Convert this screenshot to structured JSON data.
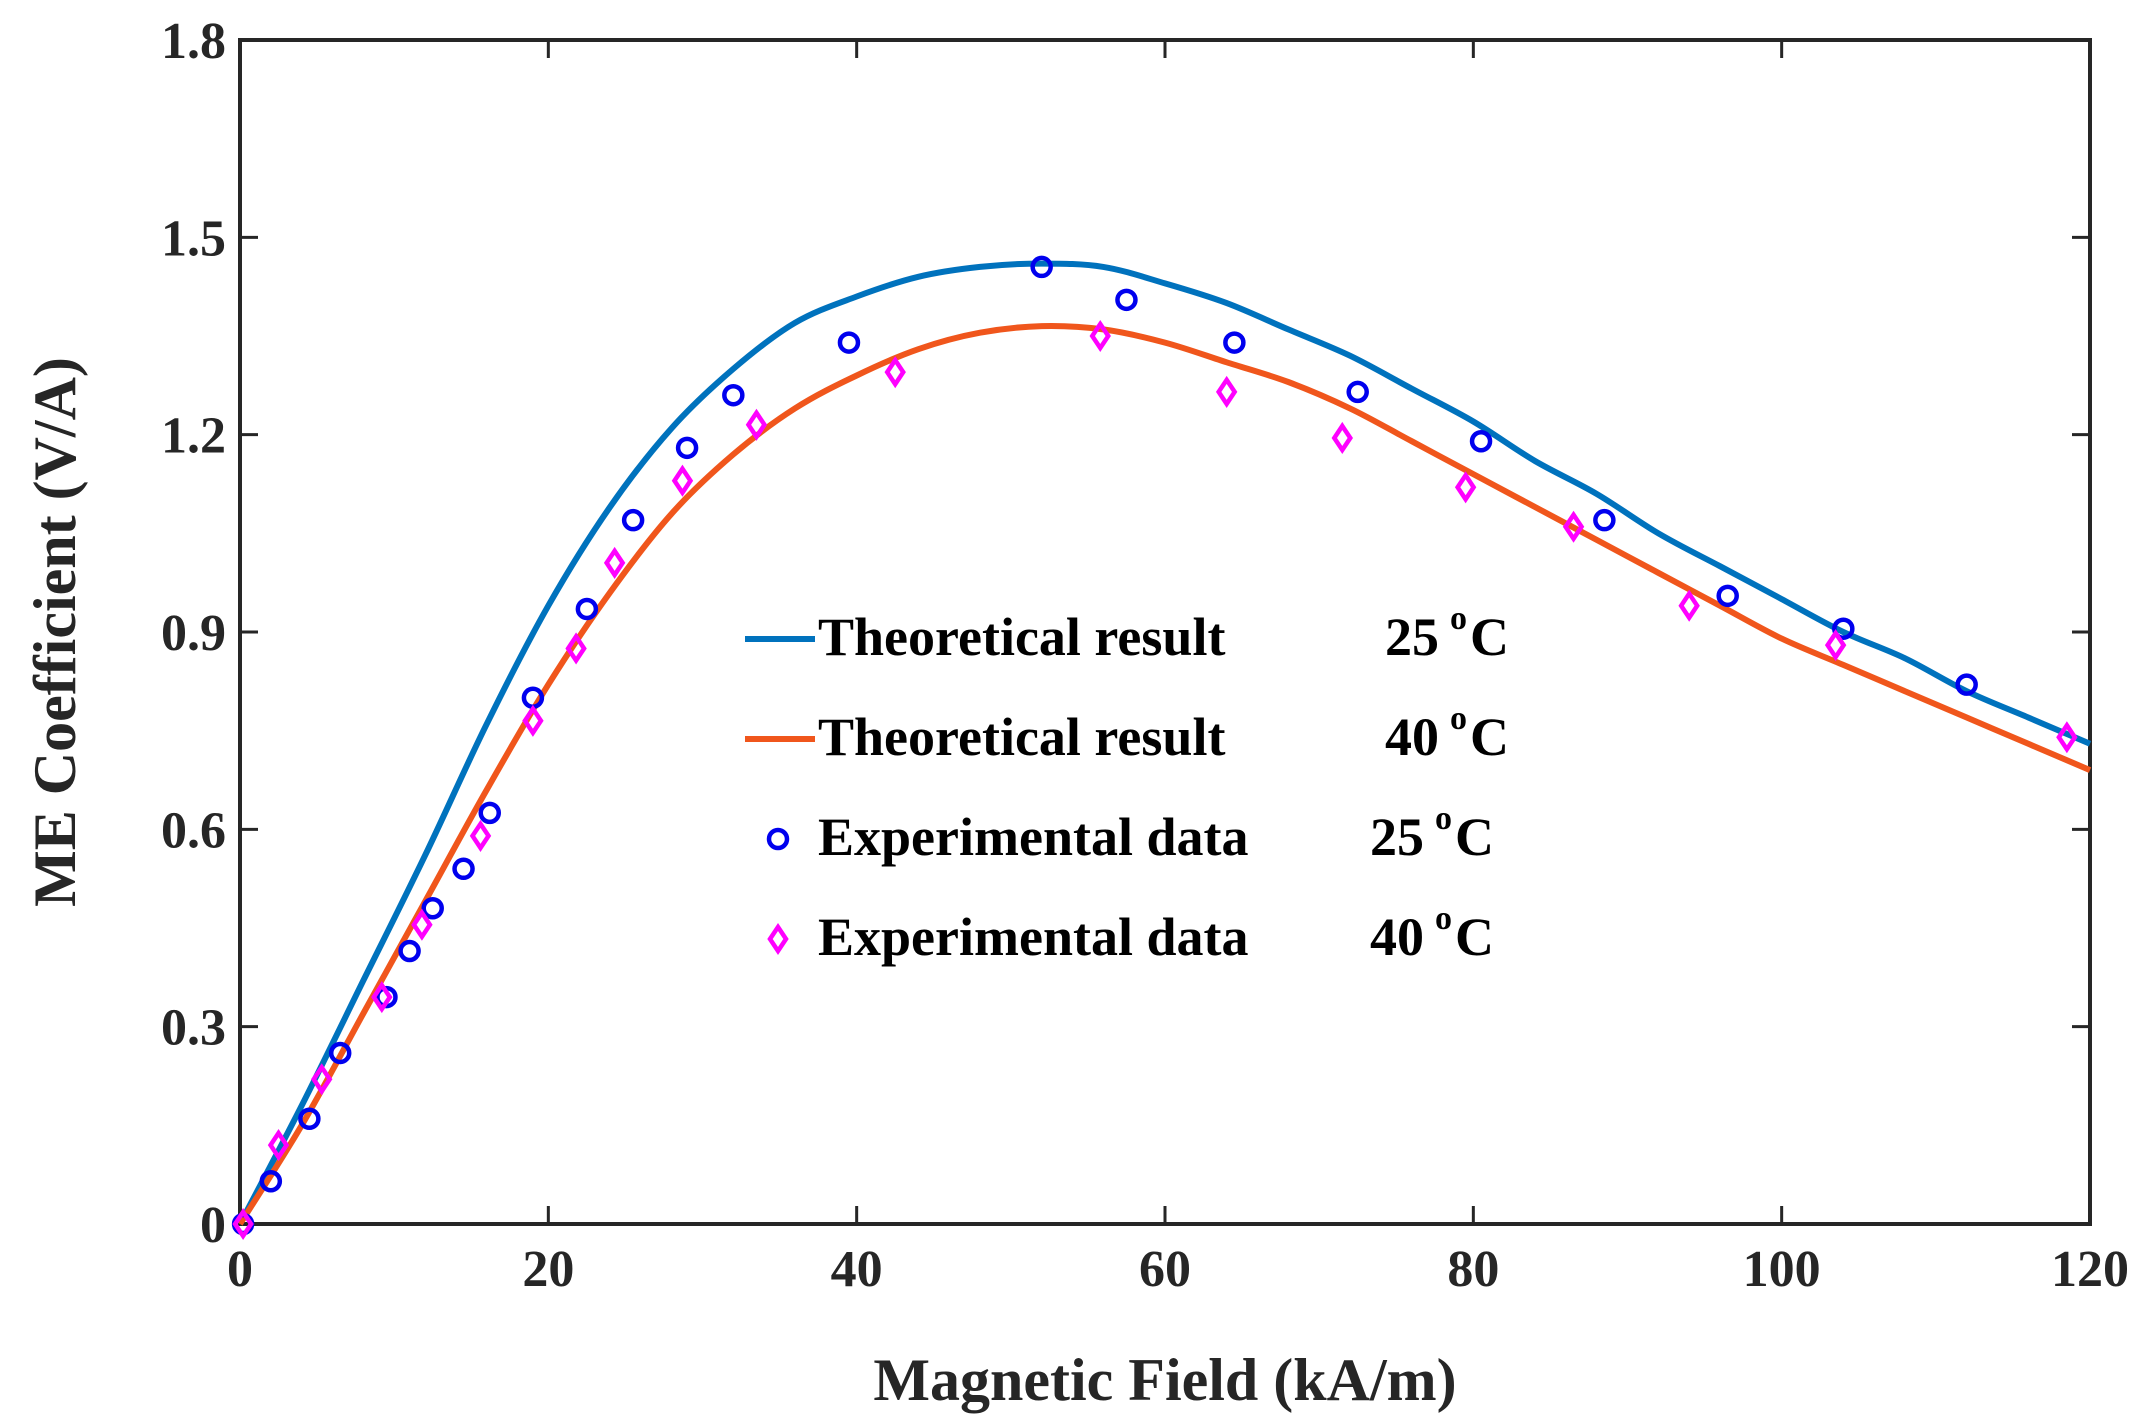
{
  "chart_data": {
    "type": "line",
    "xlabel": "Magnetic Field (kA/m)",
    "ylabel": "ME Coefficient (V/A)",
    "xlim": [
      0,
      120
    ],
    "ylim": [
      0,
      1.8
    ],
    "xticks": [
      0,
      20,
      40,
      60,
      80,
      100,
      120
    ],
    "yticks": [
      0,
      0.3,
      0.6,
      0.9,
      1.2,
      1.5,
      1.8
    ],
    "xtick_labels": [
      "0",
      "20",
      "40",
      "60",
      "80",
      "100",
      "120"
    ],
    "ytick_labels": [
      "0",
      "0.3",
      "0.6",
      "0.9",
      "1.2",
      "1.5",
      "1.8"
    ],
    "grid": false,
    "legend_position": "center",
    "series": [
      {
        "name": "Theoretical result 25 °C",
        "legend_label": "Theoretical result",
        "legend_temp": "25",
        "legend_unit": "C",
        "legend_sup": "o",
        "kind": "line",
        "color": "#0072BD",
        "x": [
          0,
          4,
          8,
          12,
          16,
          20,
          24,
          28,
          32,
          36,
          40,
          44,
          48,
          52,
          56,
          60,
          64,
          68,
          72,
          76,
          80,
          84,
          88,
          92,
          96,
          100,
          104,
          108,
          112,
          116,
          120
        ],
        "y": [
          0,
          0.18,
          0.37,
          0.56,
          0.76,
          0.94,
          1.09,
          1.21,
          1.3,
          1.37,
          1.41,
          1.44,
          1.455,
          1.46,
          1.455,
          1.43,
          1.4,
          1.36,
          1.32,
          1.27,
          1.22,
          1.16,
          1.11,
          1.05,
          1.0,
          0.95,
          0.9,
          0.86,
          0.81,
          0.77,
          0.73
        ]
      },
      {
        "name": "Theoretical result 40 °C",
        "legend_label": "Theoretical result",
        "legend_temp": "40",
        "legend_unit": "C",
        "legend_sup": "o",
        "kind": "line",
        "color": "#F0561C",
        "x": [
          0,
          4,
          8,
          12,
          16,
          20,
          24,
          28,
          32,
          36,
          40,
          44,
          48,
          52,
          56,
          60,
          64,
          68,
          72,
          76,
          80,
          84,
          88,
          92,
          96,
          100,
          104,
          108,
          112,
          116,
          120
        ],
        "y": [
          0,
          0.15,
          0.32,
          0.49,
          0.66,
          0.82,
          0.96,
          1.08,
          1.17,
          1.24,
          1.29,
          1.33,
          1.355,
          1.365,
          1.36,
          1.34,
          1.31,
          1.28,
          1.24,
          1.19,
          1.14,
          1.09,
          1.04,
          0.99,
          0.94,
          0.89,
          0.85,
          0.81,
          0.77,
          0.73,
          0.69
        ]
      },
      {
        "name": "Experimental data 25 °C",
        "legend_label": "Experimental data",
        "legend_temp": "25",
        "legend_unit": "C",
        "legend_sup": "o",
        "kind": "scatter",
        "marker": "circle",
        "color": "#0000EE",
        "x": [
          0.2,
          2,
          4.5,
          6.5,
          9.5,
          11,
          12.5,
          14.5,
          16.2,
          19,
          22.5,
          25.5,
          29,
          32,
          39.5,
          52,
          57.5,
          64.5,
          72.5,
          80.5,
          88.5,
          96.5,
          104,
          112
        ],
        "y": [
          0,
          0.065,
          0.16,
          0.26,
          0.345,
          0.415,
          0.48,
          0.54,
          0.625,
          0.8,
          0.935,
          1.07,
          1.18,
          1.26,
          1.34,
          1.455,
          1.405,
          1.34,
          1.265,
          1.19,
          1.07,
          0.955,
          0.905,
          0.82
        ]
      },
      {
        "name": "Experimental data 40 °C",
        "legend_label": "Experimental data",
        "legend_temp": "40",
        "legend_unit": "C",
        "legend_sup": "o",
        "kind": "scatter",
        "marker": "diamond",
        "color": "#FF00FF",
        "x": [
          0.2,
          2.5,
          5.3,
          9.2,
          11.8,
          15.6,
          19,
          21.8,
          24.3,
          28.7,
          33.5,
          42.5,
          55.8,
          64,
          71.5,
          79.5,
          86.5,
          94,
          103.5,
          118.5
        ],
        "y": [
          0,
          0.12,
          0.22,
          0.345,
          0.455,
          0.59,
          0.765,
          0.875,
          1.005,
          1.13,
          1.215,
          1.295,
          1.35,
          1.265,
          1.195,
          1.12,
          1.06,
          0.94,
          0.88,
          0.74
        ]
      }
    ]
  }
}
